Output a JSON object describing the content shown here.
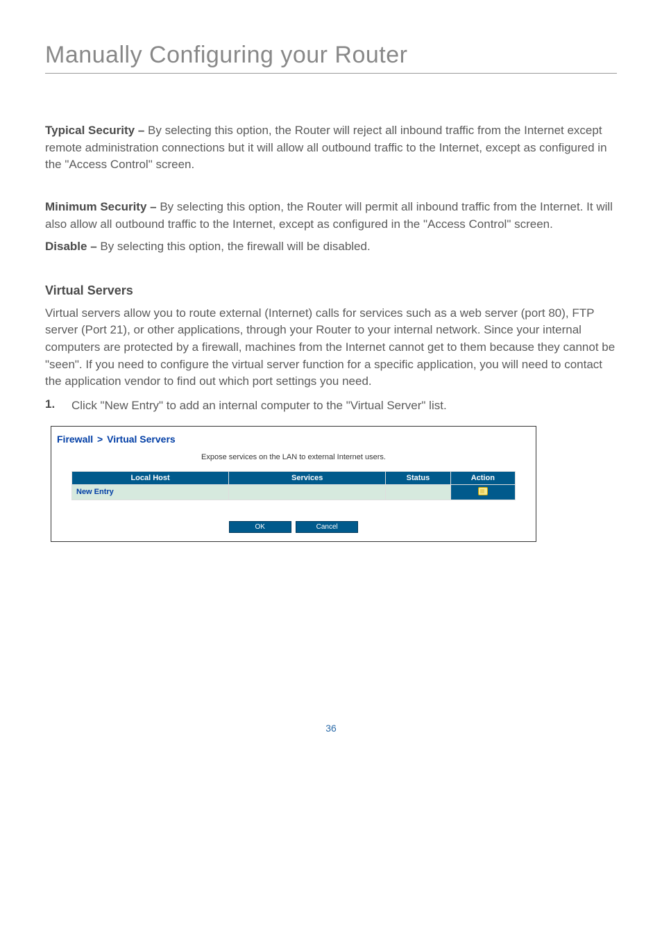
{
  "page_title": "Manually Configuring your Router",
  "para_typical": {
    "label": "Typical Security – ",
    "text": "By selecting this option, the Router will reject all inbound traffic from the Internet except remote administration connections but it will allow all outbound traffic to the Internet, except as configured in the \"Access Control\" screen."
  },
  "para_minimum": {
    "label": "Minimum Security – ",
    "text": "By selecting this option, the Router will permit all inbound traffic from the Internet. It will also allow all outbound traffic to the Internet, except as configured in the \"Access Control\" screen."
  },
  "para_disable": {
    "label": "Disable – ",
    "text": "By selecting this option, the firewall will be disabled."
  },
  "virtual_servers": {
    "heading": "Virtual Servers",
    "intro": "Virtual servers allow you to route external (Internet) calls for services such as a web server (port 80), FTP server (Port 21), or other applications, through your Router to your internal network. Since your internal computers are protected by a firewall, machines from the Internet cannot get to them because they cannot be \"seen\". If you need to configure the virtual server function for a specific application, you will need to contact the application vendor to find out which port settings you need.",
    "step_num": "1.",
    "step_text": "Click \"New Entry\" to add an internal computer to the \"Virtual Server\" list."
  },
  "screenshot": {
    "breadcrumb_firewall": "Firewall",
    "breadcrumb_sep": ">",
    "breadcrumb_vs": "Virtual Servers",
    "subcaption": "Expose services on the LAN to external Internet users.",
    "table": {
      "col_localhost": "Local Host",
      "col_services": "Services",
      "col_status": "Status",
      "col_action": "Action",
      "row_newentry": "New Entry",
      "col_widths": {
        "localhost": 218,
        "services": 218,
        "status": 90,
        "action": 90
      }
    },
    "buttons": {
      "ok": "OK",
      "cancel": "Cancel"
    },
    "colors": {
      "header_bg": "#005a8c",
      "row_bg": "#d6e9de",
      "link": "#003da5"
    }
  },
  "page_number": "36"
}
